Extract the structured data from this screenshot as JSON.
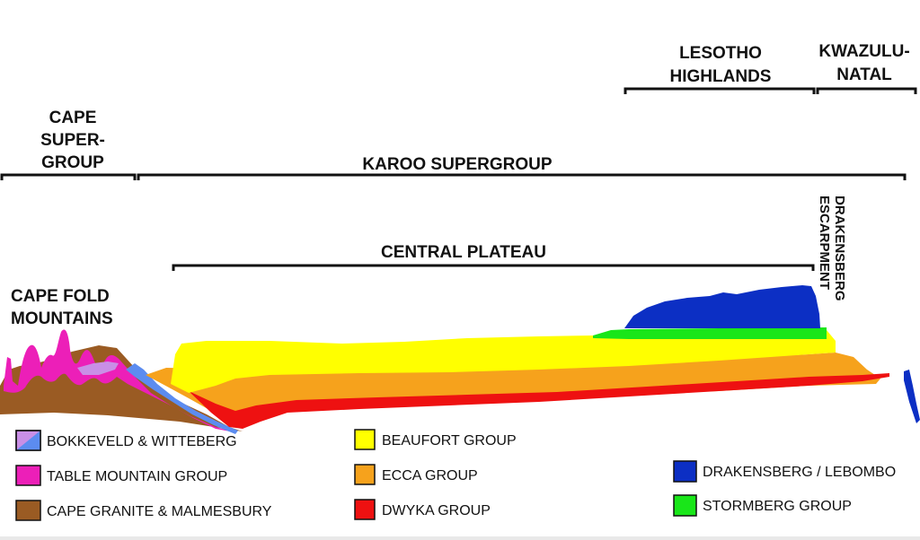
{
  "regions": {
    "cape_supergroup": [
      "CAPE",
      "SUPER-",
      "GROUP"
    ],
    "karoo_supergroup": "KAROO SUPERGROUP",
    "lesotho_highlands": [
      "LESOTHO",
      "HIGHLANDS"
    ],
    "kwazulu_natal": [
      "KWAZULU-",
      "NATAL"
    ],
    "central_plateau": "CENTRAL PLATEAU",
    "cape_fold_mountains": [
      "CAPE FOLD",
      "MOUNTAINS"
    ],
    "drakensberg_escarpment": [
      "DRAKENSBERG",
      "ESCARPMENT"
    ]
  },
  "legend": [
    {
      "label": "BOKKEVELD & WITTEBERG",
      "color": "#c98fe6",
      "color2": "#5c8cf0"
    },
    {
      "label": "TABLE MOUNTAIN GROUP",
      "color": "#ec1fb8"
    },
    {
      "label": "CAPE GRANITE & MALMESBURY",
      "color": "#9a5b23"
    },
    {
      "label": "BEAUFORT GROUP",
      "color": "#ffff00"
    },
    {
      "label": "ECCA GROUP",
      "color": "#f6a21c"
    },
    {
      "label": "DWYKA GROUP",
      "color": "#ee1111"
    },
    {
      "label": "DRAKENSBERG / LEBOMBO",
      "color": "#0c2fc4"
    },
    {
      "label": "STORMBERG GROUP",
      "color": "#19e619"
    }
  ]
}
